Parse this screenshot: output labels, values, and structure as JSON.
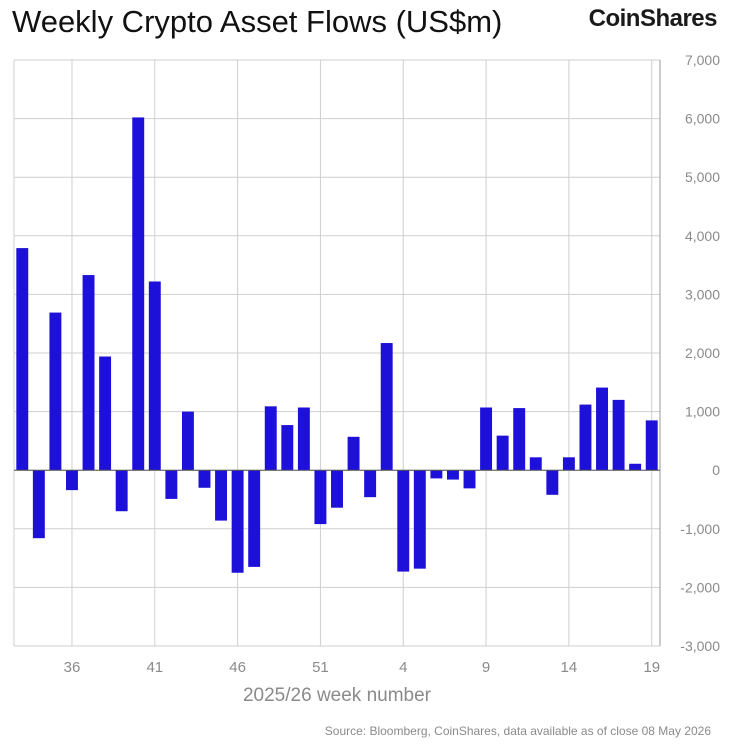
{
  "header": {
    "title": "Weekly Crypto Asset Flows (US$m)",
    "brand": "CoinShares"
  },
  "footer": {
    "source": "Source: Bloomberg, CoinShares, data available as of close 08 May 2026"
  },
  "colors": {
    "bar": "#1d10d8",
    "grid": "#cfcfcf",
    "axis": "#9a9a9a",
    "text": "#8a8a8a"
  },
  "chart_data": {
    "type": "bar",
    "title": "Weekly Crypto Asset Flows (US$m)",
    "xlabel": "2025/26 week number",
    "ylabel": "",
    "ylim": [
      -3000,
      7000
    ],
    "y_ticks": [
      7000,
      6000,
      5000,
      4000,
      3000,
      2000,
      1000,
      0,
      -1000,
      -2000,
      -3000
    ],
    "y_tick_labels": [
      "7,000",
      "6,000",
      "5,000",
      "4,000",
      "3,000",
      "2,000",
      "1,000",
      "0",
      "-1,000",
      "-2,000",
      "-3,000"
    ],
    "y_axis_side": "right",
    "grid": true,
    "categories": [
      "33",
      "34",
      "35",
      "36",
      "37",
      "38",
      "39",
      "40",
      "41",
      "42",
      "43",
      "44",
      "45",
      "46",
      "47",
      "48",
      "49",
      "50",
      "51",
      "52",
      "1",
      "2",
      "3",
      "4",
      "5",
      "6",
      "7",
      "8",
      "9",
      "10",
      "11",
      "12",
      "13",
      "14",
      "15",
      "16",
      "17",
      "18",
      "19"
    ],
    "x_tick_labels": [
      "36",
      "41",
      "46",
      "51",
      "4",
      "9",
      "14",
      "19"
    ],
    "values": [
      3790,
      -1160,
      2690,
      -340,
      3330,
      1940,
      -700,
      6020,
      3220,
      -490,
      1000,
      -300,
      -860,
      -1750,
      -1650,
      1090,
      770,
      1070,
      -920,
      -640,
      570,
      -460,
      2170,
      -1730,
      -1680,
      -140,
      -160,
      -310,
      1070,
      590,
      1060,
      220,
      -420,
      220,
      1120,
      1410,
      1200,
      110,
      850
    ]
  }
}
